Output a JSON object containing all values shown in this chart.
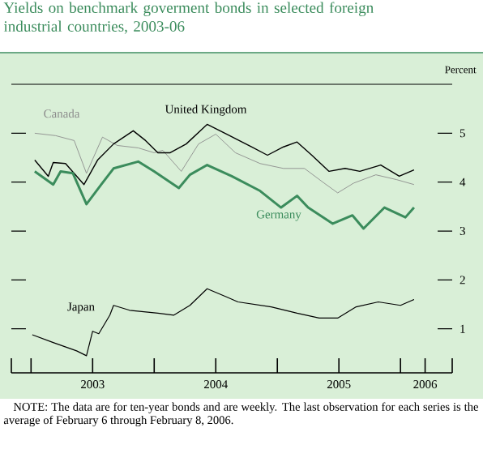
{
  "chart_data": {
    "type": "line",
    "title": "Yields on benchmark goverment bonds in selected foreign industrial countries, 2003-06",
    "ylabel": "Percent",
    "annotations": [
      "NOTE: The data are for ten-year bonds and are weekly. The last observation for each series is the average of February 6 through February 8, 2006."
    ],
    "xlim": [
      2002.84,
      2006.42
    ],
    "ylim": [
      0.1,
      6
    ],
    "xticks": [
      {
        "value": 2002.84,
        "label": null
      },
      {
        "value": 2003,
        "label": null
      },
      {
        "value": 2003.5,
        "label": "2003"
      },
      {
        "value": 2004,
        "label": null
      },
      {
        "value": 2004.5,
        "label": "2004"
      },
      {
        "value": 2005,
        "label": null
      },
      {
        "value": 2005.5,
        "label": "2005"
      },
      {
        "value": 2006,
        "label": null
      },
      {
        "value": 2006.2,
        "label": "2006"
      },
      {
        "value": 2006.42,
        "label": null
      }
    ],
    "yticks": [
      1,
      2,
      3,
      4,
      5
    ],
    "series": [
      {
        "name": "Canada",
        "color": "#8c8c8c",
        "x": [
          2003.03,
          2003.2,
          2003.35,
          2003.45,
          2003.58,
          2003.7,
          2003.87,
          2004.0,
          2004.07,
          2004.22,
          2004.36,
          2004.5,
          2004.66,
          2004.86,
          2005.05,
          2005.22,
          2005.38,
          2005.49,
          2005.62,
          2005.8,
          2005.97,
          2006.11
        ],
        "values": [
          5.0,
          4.95,
          4.85,
          4.18,
          4.92,
          4.75,
          4.7,
          4.6,
          4.65,
          4.22,
          4.78,
          4.98,
          4.6,
          4.38,
          4.28,
          4.28,
          3.98,
          3.78,
          3.98,
          4.15,
          4.05,
          3.95
        ]
      },
      {
        "name": "United Kingdom",
        "color": "#000000",
        "x": [
          2003.03,
          2003.14,
          2003.18,
          2003.28,
          2003.43,
          2003.54,
          2003.67,
          2003.83,
          2003.93,
          2004.03,
          2004.13,
          2004.26,
          2004.43,
          2004.59,
          2004.79,
          2004.92,
          2005.05,
          2005.16,
          2005.28,
          2005.42,
          2005.55,
          2005.67,
          2005.84,
          2005.99,
          2006.11
        ],
        "values": [
          4.45,
          4.12,
          4.4,
          4.38,
          3.95,
          4.45,
          4.78,
          5.05,
          4.85,
          4.6,
          4.6,
          4.78,
          5.18,
          4.98,
          4.72,
          4.55,
          4.72,
          4.82,
          4.55,
          4.22,
          4.28,
          4.22,
          4.35,
          4.12,
          4.25
        ]
      },
      {
        "name": "Germany",
        "color": "#3b8c5c",
        "x": [
          2003.03,
          2003.18,
          2003.24,
          2003.34,
          2003.45,
          2003.57,
          2003.67,
          2003.87,
          2004.0,
          2004.2,
          2004.29,
          2004.43,
          2004.63,
          2004.86,
          2005.03,
          2005.16,
          2005.25,
          2005.45,
          2005.61,
          2005.7,
          2005.87,
          2006.04,
          2006.11
        ],
        "values": [
          4.22,
          3.95,
          4.22,
          4.18,
          3.55,
          3.95,
          4.28,
          4.42,
          4.22,
          3.88,
          4.15,
          4.35,
          4.12,
          3.82,
          3.48,
          3.72,
          3.48,
          3.15,
          3.32,
          3.05,
          3.48,
          3.28,
          3.48
        ]
      },
      {
        "name": "Japan",
        "color": "#000000",
        "x": [
          2003.01,
          2003.18,
          2003.37,
          2003.45,
          2003.5,
          2003.55,
          2003.64,
          2003.67,
          2003.8,
          2004.03,
          2004.16,
          2004.29,
          2004.43,
          2004.59,
          2004.68,
          2004.95,
          2005.16,
          2005.34,
          2005.49,
          2005.64,
          2005.82,
          2006.0,
          2006.11
        ],
        "values": [
          0.88,
          0.72,
          0.55,
          0.45,
          0.95,
          0.9,
          1.28,
          1.48,
          1.38,
          1.32,
          1.28,
          1.48,
          1.82,
          1.65,
          1.55,
          1.45,
          1.32,
          1.22,
          1.22,
          1.45,
          1.55,
          1.48,
          1.6
        ]
      }
    ]
  }
}
